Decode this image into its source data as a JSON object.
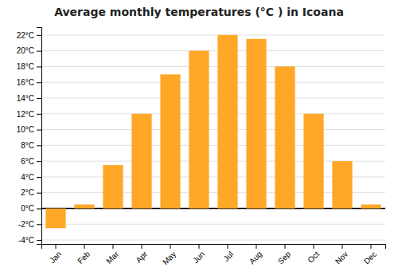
{
  "chart_data": {
    "type": "bar",
    "title": "Average monthly temperatures (°C ) in Icoana",
    "categories": [
      "Jan",
      "Feb",
      "Mar",
      "Apr",
      "May",
      "Jun",
      "Jul",
      "Aug",
      "Sep",
      "Oct",
      "Nov",
      "Dec"
    ],
    "values": [
      -2.5,
      0.5,
      5.5,
      12.0,
      17.0,
      20.0,
      22.0,
      21.5,
      18.0,
      12.0,
      6.0,
      0.5
    ],
    "color": "#FFA726",
    "ylim": [
      -4.5,
      23
    ],
    "yticks": [
      {
        "value": -4,
        "label": "-4°C"
      },
      {
        "value": -2,
        "label": "-2°C"
      },
      {
        "value": 0,
        "label": "0°C"
      },
      {
        "value": 2,
        "label": "2°C"
      },
      {
        "value": 4,
        "label": "4°C"
      },
      {
        "value": 6,
        "label": "6°C"
      },
      {
        "value": 8,
        "label": "8°C"
      },
      {
        "value": 10,
        "label": "10°C"
      },
      {
        "value": 12,
        "label": "12°C"
      },
      {
        "value": 14,
        "label": "14°C"
      },
      {
        "value": 16,
        "label": "16°C"
      },
      {
        "value": 18,
        "label": "18°C"
      },
      {
        "value": 20,
        "label": "20°C"
      },
      {
        "value": 22,
        "label": "22°C"
      }
    ],
    "grid": true
  }
}
